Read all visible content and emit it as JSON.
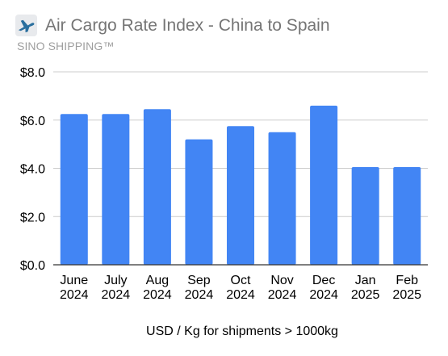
{
  "header": {
    "icon": "airplane-icon",
    "title": "Air Cargo Rate Index - China to Spain",
    "subtitle": "SINO SHIPPING™"
  },
  "colors": {
    "bar": "#4285f4",
    "gridline": "#cccccc",
    "baseline": "#333333",
    "title": "#757575",
    "subtitle": "#9e9e9e",
    "icon_plane": "#2a6f9e",
    "icon_background": "#e8eaed"
  },
  "chart_data": {
    "type": "bar",
    "title": "Air Cargo Rate Index - China to Spain",
    "subtitle": "SINO SHIPPING™",
    "xlabel": "USD / Kg for shipments > 1000kg",
    "ylabel": "",
    "categories": [
      [
        "June",
        "2024"
      ],
      [
        "July",
        "2024"
      ],
      [
        "Aug",
        "2024"
      ],
      [
        "Sep",
        "2024"
      ],
      [
        "Oct",
        "2024"
      ],
      [
        "Nov",
        "2024"
      ],
      [
        "Dec",
        "2024"
      ],
      [
        "Jan",
        "2025"
      ],
      [
        "Feb",
        "2025"
      ]
    ],
    "values": [
      6.25,
      6.25,
      6.45,
      5.2,
      5.75,
      5.5,
      6.6,
      4.05,
      4.05
    ],
    "ylim": [
      0,
      8
    ],
    "yticks": [
      0,
      2,
      4,
      6,
      8
    ],
    "ytick_labels": [
      "$0.0",
      "$2.0",
      "$4.0",
      "$6.0",
      "$8.0"
    ],
    "grid": true,
    "legend": "none"
  }
}
